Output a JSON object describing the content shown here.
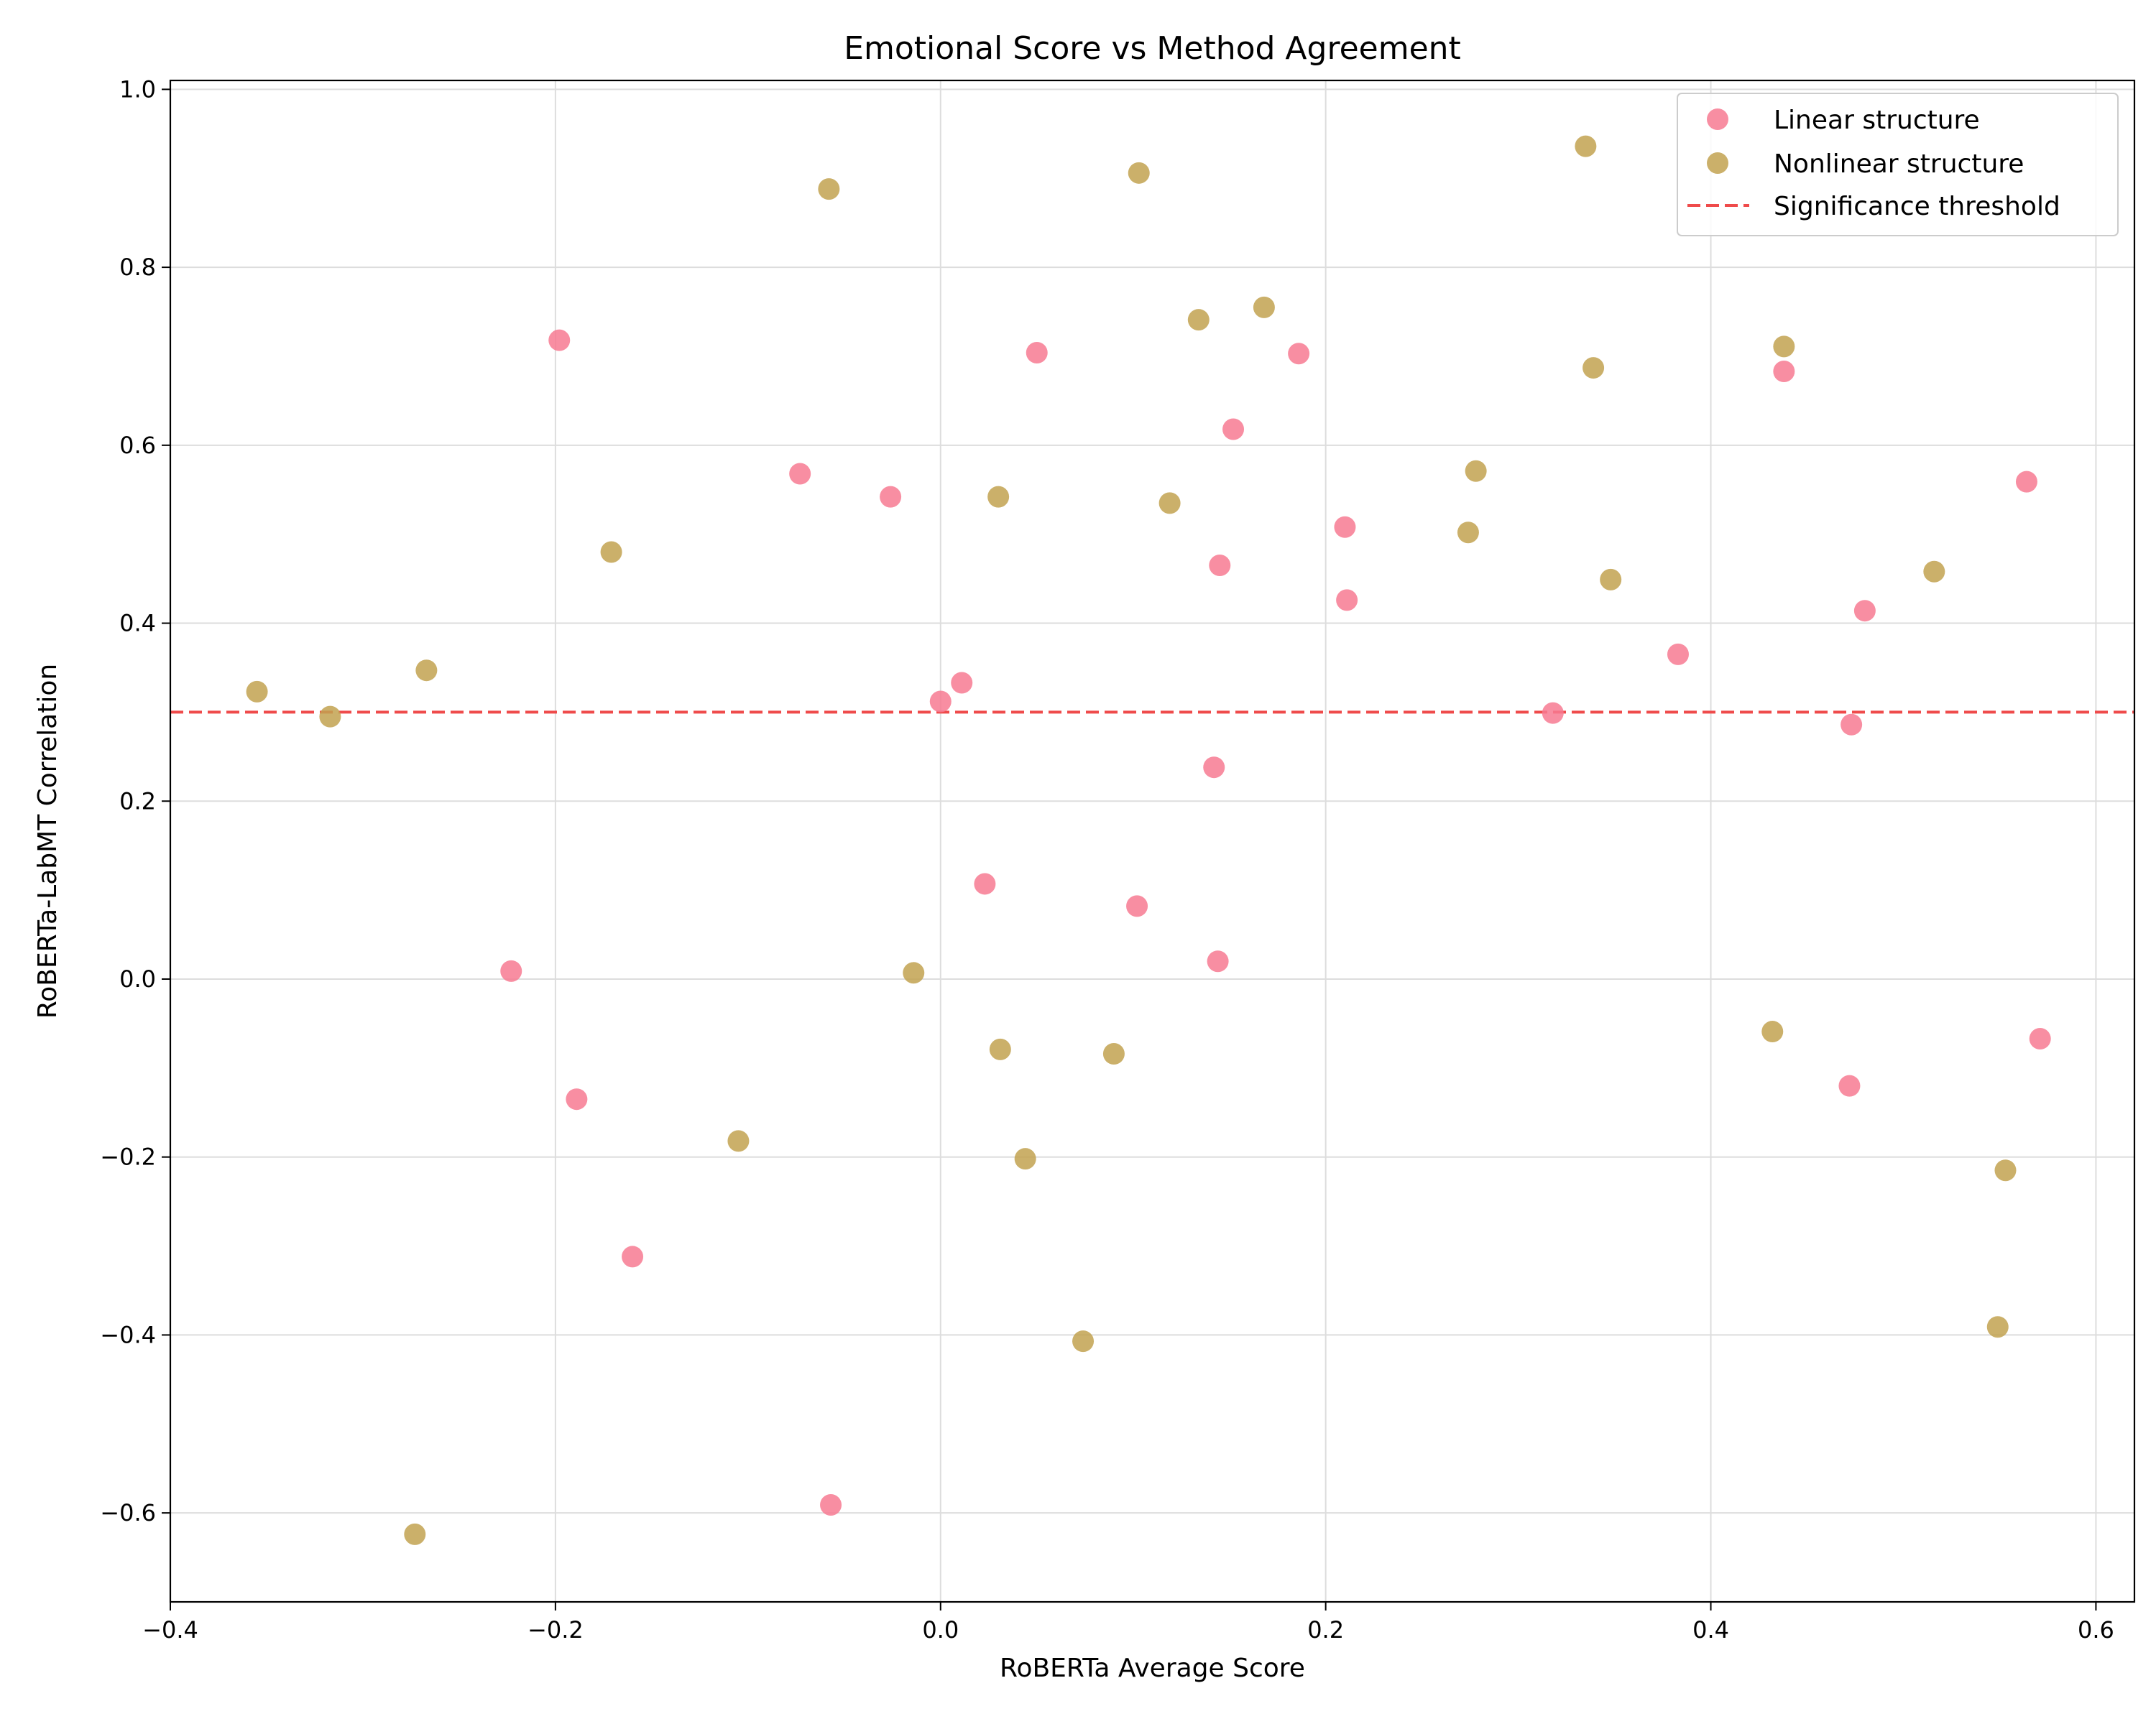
{
  "chart_data": {
    "type": "scatter",
    "title": "Emotional Score vs Method Agreement",
    "xlabel": "RoBERTa Average Score",
    "ylabel": "RoBERTa-LabMT Correlation",
    "xlim": [
      -0.4,
      0.62
    ],
    "ylim": [
      -0.7,
      1.01
    ],
    "xticks": [
      -0.4,
      -0.2,
      0.0,
      0.2,
      0.4,
      0.6
    ],
    "xtick_labels": [
      "−0.4",
      "−0.2",
      "0.0",
      "0.2",
      "0.4",
      "0.6"
    ],
    "yticks": [
      -0.6,
      -0.4,
      -0.2,
      0.0,
      0.2,
      0.4,
      0.6,
      0.8,
      1.0
    ],
    "ytick_labels": [
      "−0.6",
      "−0.4",
      "−0.2",
      "0.0",
      "0.2",
      "0.4",
      "0.6",
      "0.8",
      "1.0"
    ],
    "grid": true,
    "legend_position": "top-right",
    "threshold": {
      "name": "Significance threshold",
      "y": 0.3,
      "color": "#ef4b4b"
    },
    "series": [
      {
        "name": "Linear structure",
        "color": "#f77a92",
        "points": [
          [
            -0.198,
            0.718
          ],
          [
            -0.073,
            0.568
          ],
          [
            -0.026,
            0.542
          ],
          [
            0.05,
            0.704
          ],
          [
            0.186,
            0.703
          ],
          [
            0.152,
            0.618
          ],
          [
            0.21,
            0.508
          ],
          [
            0.145,
            0.465
          ],
          [
            0.211,
            0.426
          ],
          [
            0.0,
            0.312
          ],
          [
            0.011,
            0.333
          ],
          [
            0.142,
            0.238
          ],
          [
            0.318,
            0.299
          ],
          [
            0.383,
            0.365
          ],
          [
            0.438,
            0.683
          ],
          [
            0.564,
            0.559
          ],
          [
            0.48,
            0.414
          ],
          [
            0.473,
            0.286
          ],
          [
            0.023,
            0.107
          ],
          [
            0.102,
            0.082
          ],
          [
            0.144,
            0.02
          ],
          [
            -0.223,
            0.009
          ],
          [
            -0.189,
            -0.135
          ],
          [
            -0.16,
            -0.312
          ],
          [
            -0.057,
            -0.591
          ],
          [
            0.472,
            -0.12
          ],
          [
            0.571,
            -0.067
          ]
        ]
      },
      {
        "name": "Nonlinear structure",
        "color": "#c2a250",
        "points": [
          [
            -0.058,
            0.888
          ],
          [
            0.103,
            0.906
          ],
          [
            0.335,
            0.936
          ],
          [
            0.134,
            0.741
          ],
          [
            0.168,
            0.755
          ],
          [
            0.339,
            0.687
          ],
          [
            0.438,
            0.711
          ],
          [
            0.03,
            0.542
          ],
          [
            0.119,
            0.535
          ],
          [
            0.278,
            0.571
          ],
          [
            0.274,
            0.502
          ],
          [
            0.348,
            0.449
          ],
          [
            0.516,
            0.458
          ],
          [
            -0.171,
            0.48
          ],
          [
            -0.267,
            0.347
          ],
          [
            -0.355,
            0.323
          ],
          [
            -0.317,
            0.295
          ],
          [
            -0.014,
            0.007
          ],
          [
            0.031,
            -0.079
          ],
          [
            0.09,
            -0.084
          ],
          [
            -0.105,
            -0.182
          ],
          [
            0.044,
            -0.202
          ],
          [
            0.432,
            -0.059
          ],
          [
            0.553,
            -0.215
          ],
          [
            0.074,
            -0.407
          ],
          [
            0.549,
            -0.391
          ],
          [
            -0.273,
            -0.624
          ]
        ]
      }
    ]
  }
}
